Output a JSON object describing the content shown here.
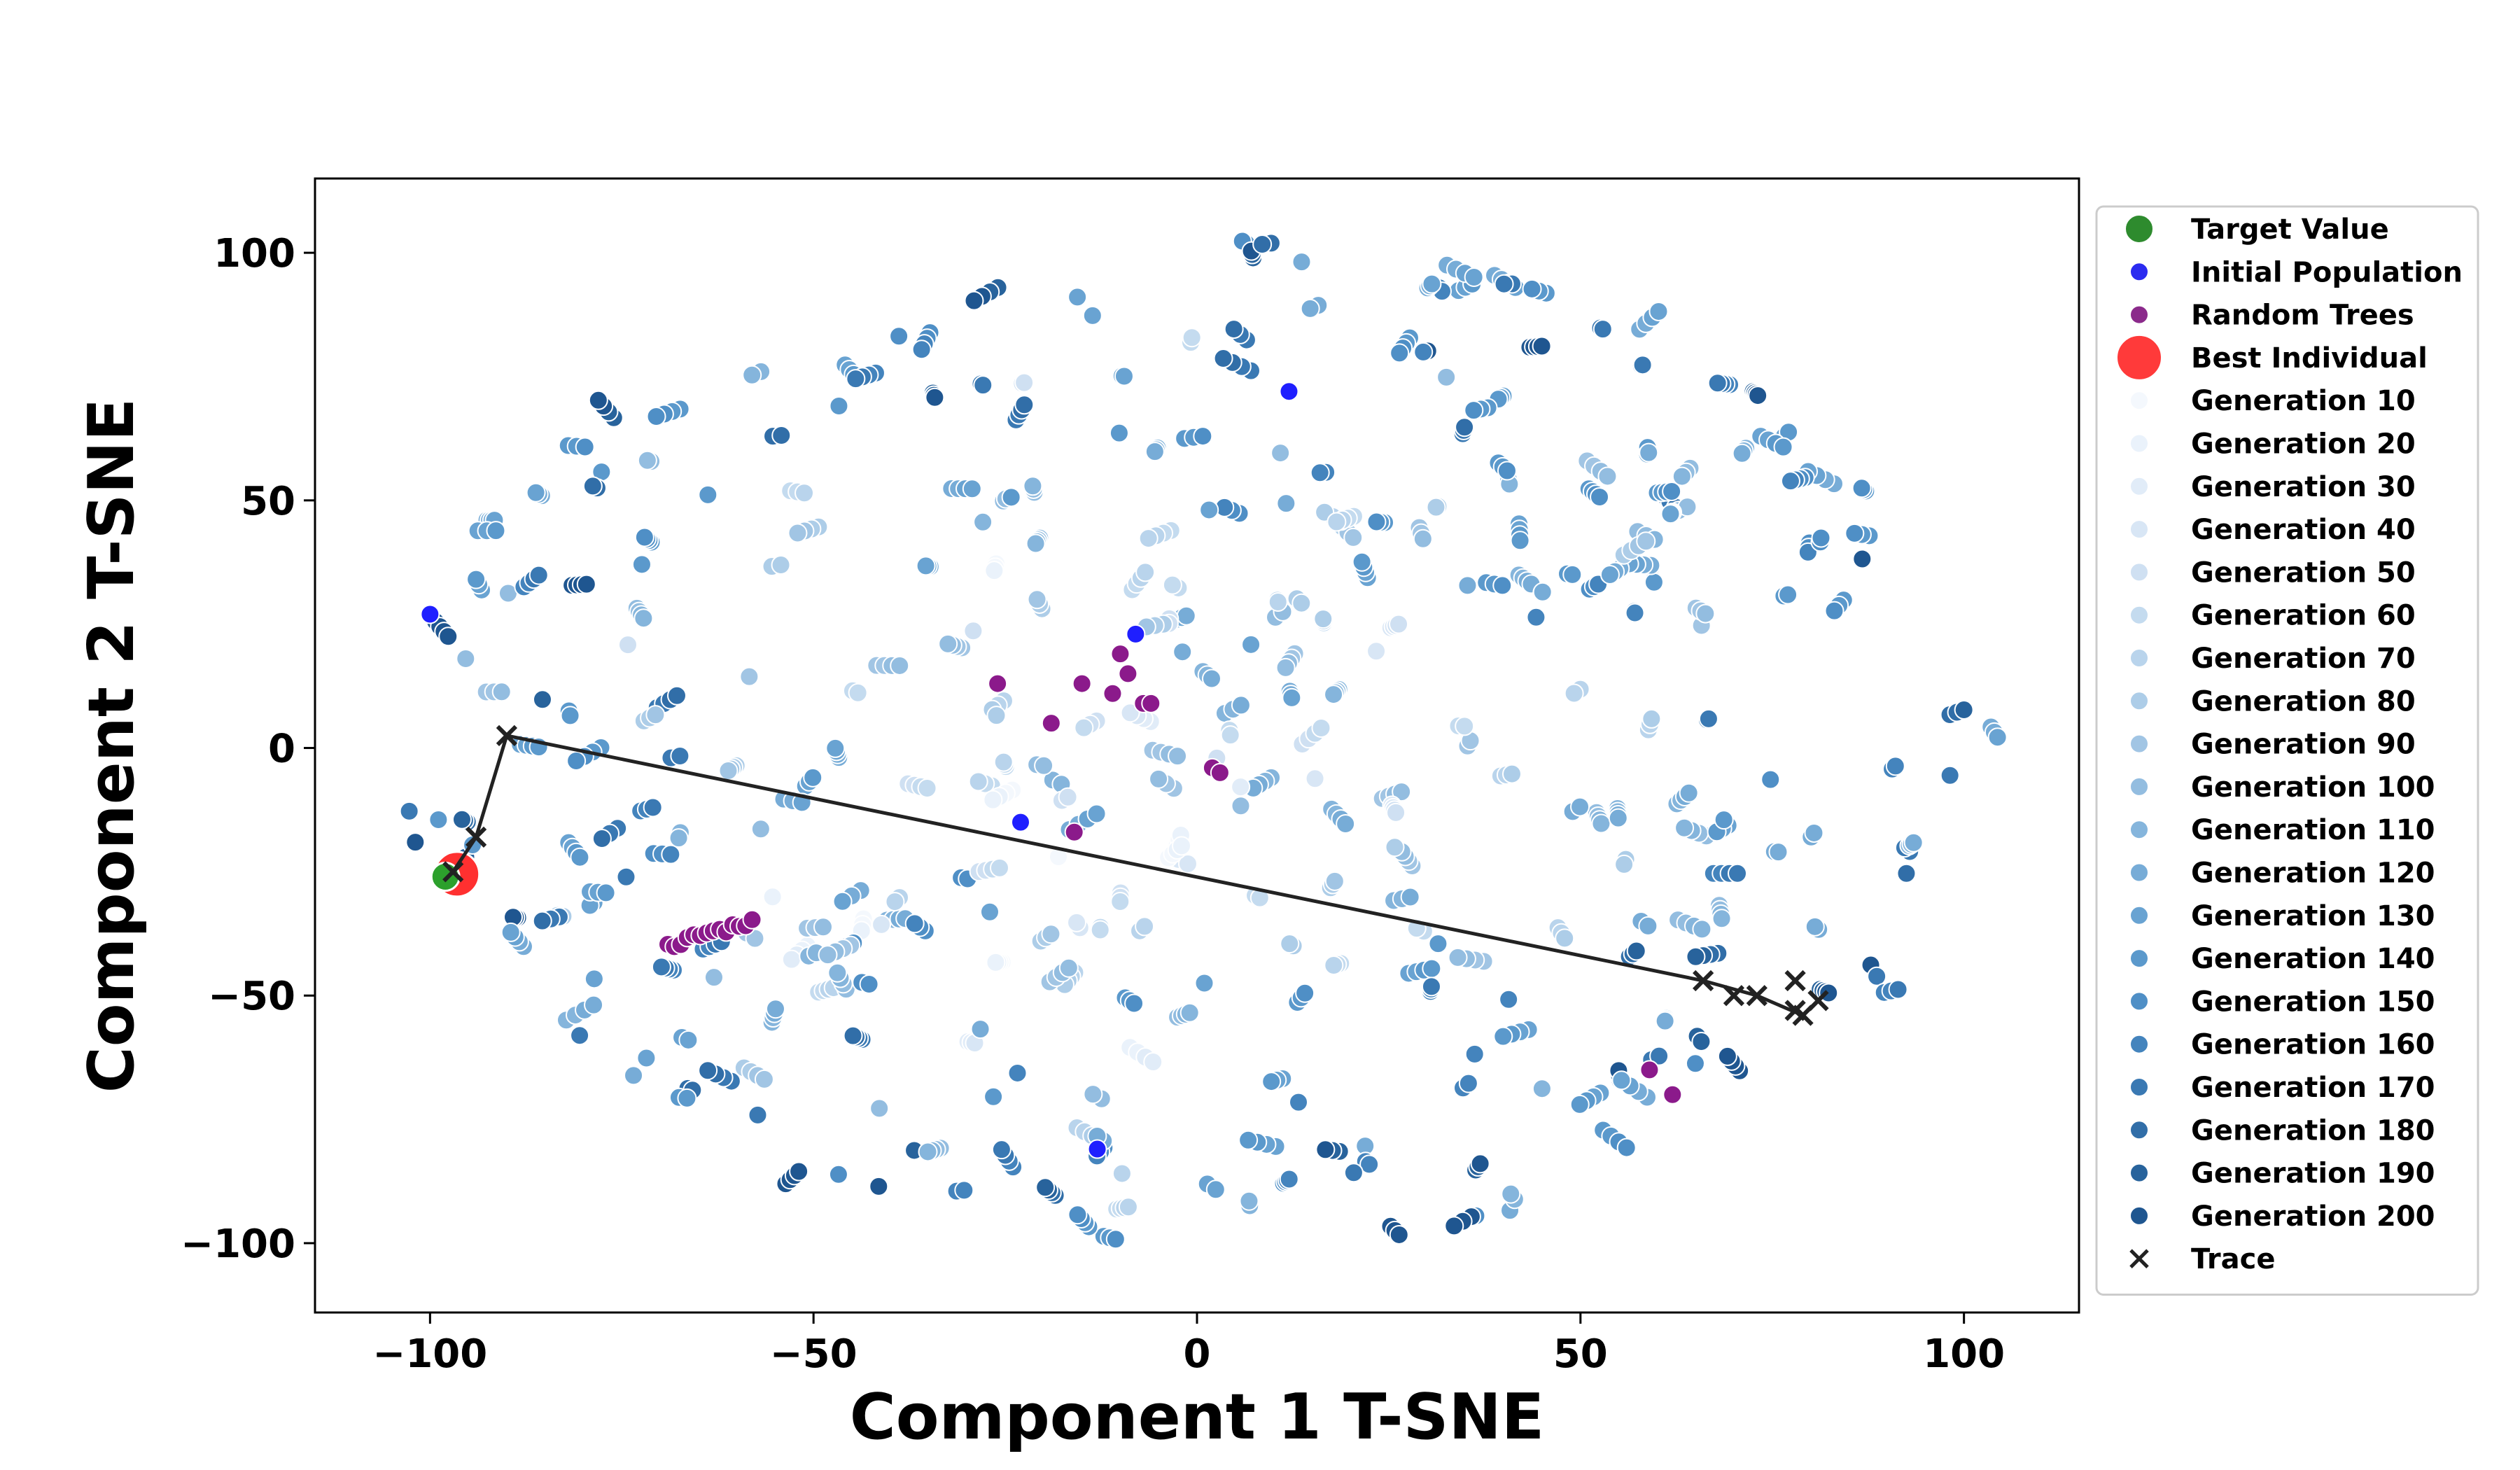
{
  "chart_data": {
    "type": "scatter",
    "xlabel": "Component 1 T-SNE",
    "ylabel": "Component 2 T-SNE",
    "xlim": [
      -115,
      115
    ],
    "ylim": [
      -114,
      115
    ],
    "x_ticks": [
      {
        "v": -100,
        "label": "−100"
      },
      {
        "v": -50,
        "label": "−50"
      },
      {
        "v": 0,
        "label": "0"
      },
      {
        "v": 50,
        "label": "50"
      },
      {
        "v": 100,
        "label": "100"
      }
    ],
    "y_ticks": [
      {
        "v": 100,
        "label": "100"
      },
      {
        "v": 50,
        "label": "50"
      },
      {
        "v": 0,
        "label": "0"
      },
      {
        "v": -50,
        "label": "−50"
      },
      {
        "v": -100,
        "label": "−100"
      }
    ],
    "grid": false,
    "legend_position": "right, outside plot",
    "colors": {
      "target": "#2ca02c",
      "initial": "#1f1fff",
      "random_trees": "#8b1a8b",
      "best": "#ff3030",
      "trace": "#222222",
      "generation_ramp_light": "#eef4fc",
      "generation_ramp_dark": "#1f4e8c"
    },
    "legend": [
      {
        "label": "Target Value",
        "color": "#2e8b2e",
        "kind": "circle",
        "size": 20
      },
      {
        "label": "Initial Population",
        "color": "#2b2bf0",
        "kind": "circle",
        "size": 13
      },
      {
        "label": "Random Trees",
        "color": "#8b2a8b",
        "kind": "circle",
        "size": 13
      },
      {
        "label": "Best Individual",
        "color": "#ff3a3a",
        "kind": "circle",
        "size": 32
      },
      {
        "label": "Generation 10",
        "color": "#f4f8fd",
        "kind": "circle",
        "size": 13
      },
      {
        "label": "Generation 20",
        "color": "#eaf2fb",
        "kind": "circle",
        "size": 13
      },
      {
        "label": "Generation 30",
        "color": "#e1ecf8",
        "kind": "circle",
        "size": 13
      },
      {
        "label": "Generation 40",
        "color": "#d8e6f5",
        "kind": "circle",
        "size": 13
      },
      {
        "label": "Generation 50",
        "color": "#cfe0f2",
        "kind": "circle",
        "size": 13
      },
      {
        "label": "Generation 60",
        "color": "#c4dbef",
        "kind": "circle",
        "size": 13
      },
      {
        "label": "Generation 70",
        "color": "#b9d4ec",
        "kind": "circle",
        "size": 13
      },
      {
        "label": "Generation 80",
        "color": "#adcde8",
        "kind": "circle",
        "size": 13
      },
      {
        "label": "Generation 90",
        "color": "#a1c5e4",
        "kind": "circle",
        "size": 13
      },
      {
        "label": "Generation 100",
        "color": "#93bde0",
        "kind": "circle",
        "size": 13
      },
      {
        "label": "Generation 110",
        "color": "#85b5dc",
        "kind": "circle",
        "size": 13
      },
      {
        "label": "Generation 120",
        "color": "#77acd7",
        "kind": "circle",
        "size": 13
      },
      {
        "label": "Generation 130",
        "color": "#69a3d2",
        "kind": "circle",
        "size": 13
      },
      {
        "label": "Generation 140",
        "color": "#5b99cc",
        "kind": "circle",
        "size": 13
      },
      {
        "label": "Generation 150",
        "color": "#4f8fc6",
        "kind": "circle",
        "size": 13
      },
      {
        "label": "Generation 160",
        "color": "#4484bd",
        "kind": "circle",
        "size": 13
      },
      {
        "label": "Generation 170",
        "color": "#3a79b3",
        "kind": "circle",
        "size": 13
      },
      {
        "label": "Generation 180",
        "color": "#316ea8",
        "kind": "circle",
        "size": 13
      },
      {
        "label": "Generation 190",
        "color": "#28639c",
        "kind": "circle",
        "size": 13
      },
      {
        "label": "Generation 200",
        "color": "#1f5690",
        "kind": "circle",
        "size": 13
      },
      {
        "label": "Trace",
        "color": "#222222",
        "kind": "x",
        "size": 13
      }
    ],
    "trace_path": [
      [
        -97,
        -25
      ],
      [
        -94,
        -18
      ],
      [
        -90,
        2.5
      ],
      [
        66,
        -47
      ],
      [
        70,
        -50
      ],
      [
        73,
        -50
      ],
      [
        78,
        -53
      ],
      [
        81,
        -51
      ],
      [
        78,
        -47
      ],
      [
        79,
        -54
      ]
    ],
    "target_point": [
      -98,
      -26
    ],
    "best_point": [
      -96.5,
      -25.5
    ],
    "random_trees": {
      "cluster": {
        "x0": -69,
        "y0": -40,
        "x1": -58,
        "y1": -35,
        "n": 14
      },
      "points": [
        [
          -19,
          5
        ],
        [
          -15,
          13
        ],
        [
          -9,
          15
        ],
        [
          -7,
          9
        ],
        [
          -6,
          9
        ],
        [
          2,
          -4
        ],
        [
          3,
          -5
        ],
        [
          -16,
          -17
        ],
        [
          -11,
          11
        ],
        [
          -10,
          19
        ],
        [
          -26,
          13
        ],
        [
          59,
          -65
        ],
        [
          62,
          -70
        ]
      ]
    },
    "initial_population": [
      [
        -100,
        27
      ],
      [
        -8,
        23
      ],
      [
        12,
        72
      ],
      [
        -13,
        -81
      ],
      [
        -23,
        -15
      ]
    ],
    "generation_points_note": "Approximately 1000 generation points (small circles shaded from light to dark blue) spread over roughly x -105..105, y -104..105; dense overlapping clusters make individual values unreadable."
  }
}
